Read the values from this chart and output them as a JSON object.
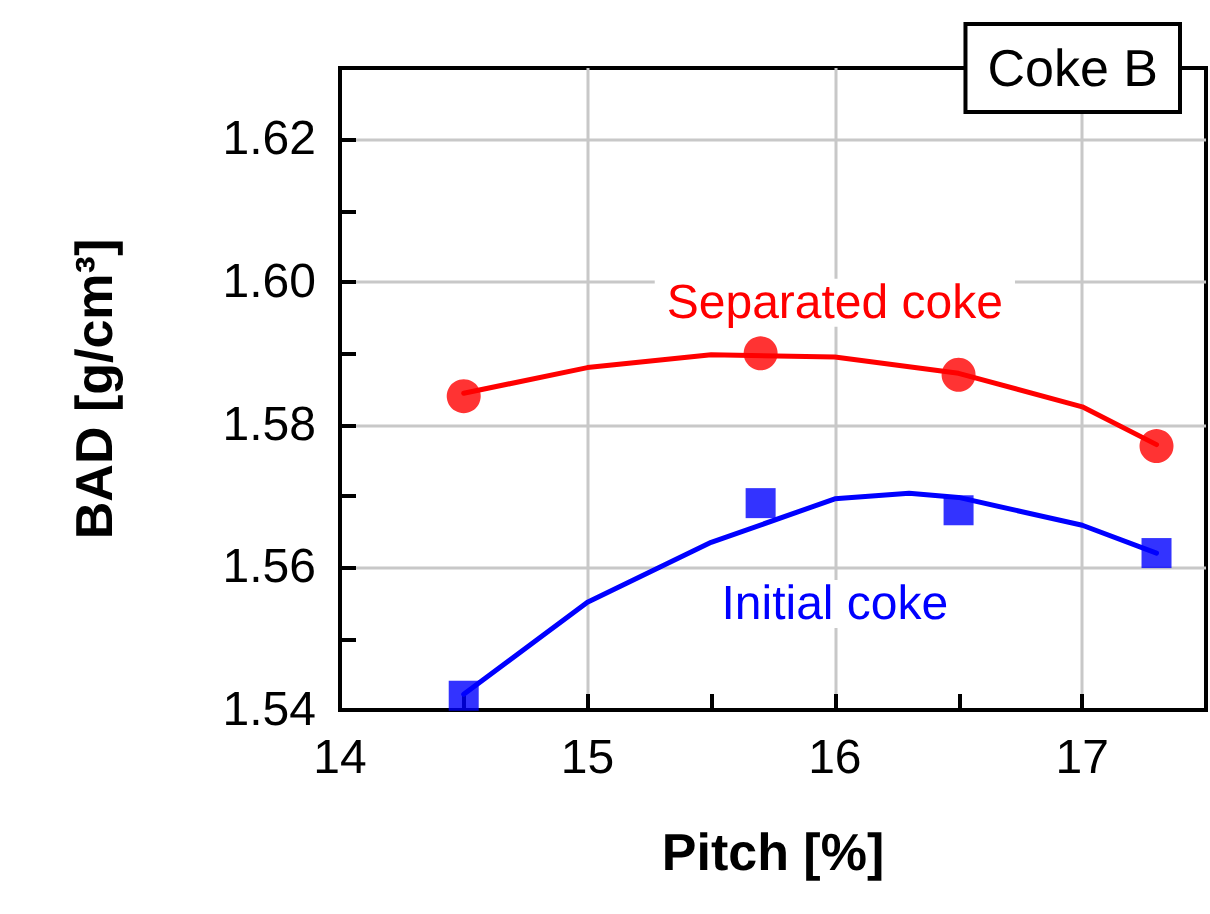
{
  "chart_data": {
    "type": "scatter",
    "xlabel": "Pitch [%]",
    "ylabel": "BAD [g/cm³]",
    "annotations": [
      "Coke B"
    ],
    "xlim": [
      14,
      17.5
    ],
    "xticks": [
      14,
      {
        "value": 14.5,
        "label": null
      },
      15,
      {
        "value": 15.5,
        "label": null
      },
      16,
      {
        "value": 16.5,
        "label": null
      },
      17
    ],
    "ylim": [
      1.54,
      1.63
    ],
    "yticks": [
      1.54,
      {
        "value": 1.55,
        "label": null
      },
      1.56,
      {
        "value": 1.57,
        "label": null
      },
      1.58,
      {
        "value": 1.59,
        "label": null
      },
      {
        "value": 1.6,
        "label": "1.60"
      },
      {
        "value": 1.61,
        "label": null
      },
      1.62
    ],
    "grid": true,
    "legend": false,
    "series": [
      {
        "name": "Separated coke",
        "color": "#ff0000",
        "marker": "circle",
        "x": [
          14.5,
          15.7,
          16.5,
          17.3
        ],
        "values": [
          1.584,
          1.59,
          1.587,
          1.577
        ]
      },
      {
        "name": "Initial coke",
        "color": "#0000ff",
        "marker": "square",
        "x": [
          14.5,
          15.7,
          16.5,
          17.3
        ],
        "values": [
          1.542,
          1.569,
          1.568,
          1.562
        ]
      },
      {
        "type": "line",
        "color": "#ff0000",
        "marker": "none",
        "line_style": "solid",
        "x": [
          14.5,
          15.0,
          15.5,
          16.0,
          16.5,
          17.0,
          17.3
        ],
        "values": [
          1.5844,
          1.588,
          1.5898,
          1.5895,
          1.5872,
          1.5825,
          1.5772
        ]
      },
      {
        "type": "line",
        "color": "#0000ff",
        "marker": "none",
        "line_style": "solid",
        "x": [
          14.5,
          15.0,
          15.5,
          16.0,
          16.3,
          16.5,
          17.0,
          17.3
        ],
        "values": [
          1.5422,
          1.5551,
          1.5635,
          1.5696,
          1.5704,
          1.5698,
          1.5659,
          1.562
        ]
      }
    ]
  }
}
